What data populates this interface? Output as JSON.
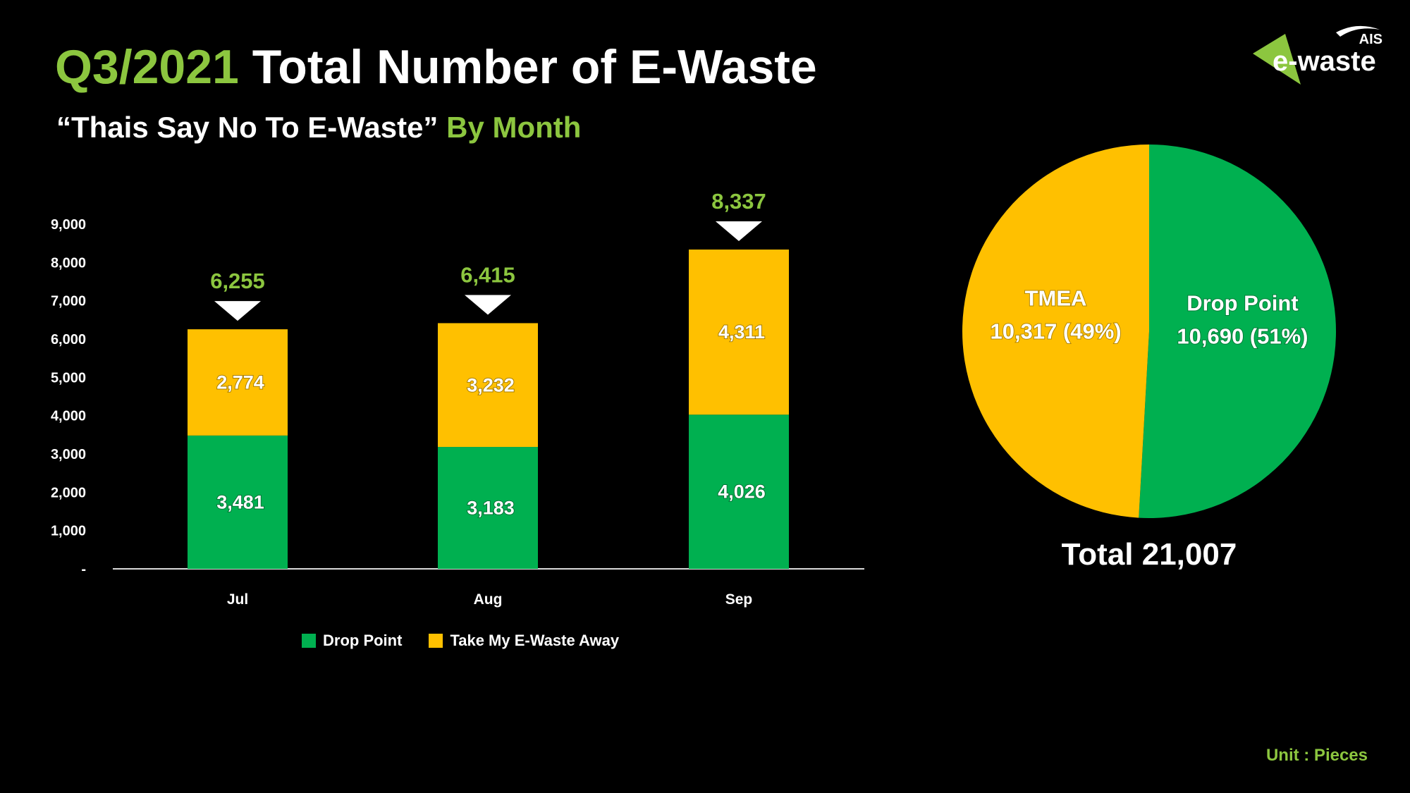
{
  "header": {
    "title_highlight": "Q3/2021",
    "title_rest": "Total Number of E-Waste",
    "subtitle_main": "“Thais Say No To E-Waste”",
    "subtitle_highlight": "By Month"
  },
  "logo": {
    "brand": "AIS",
    "product": "e-waste"
  },
  "colors": {
    "green": "#00b050",
    "yellow": "#ffc000",
    "accent": "#8cc63f",
    "background": "#000000"
  },
  "chart_data": [
    {
      "type": "bar",
      "stacked": true,
      "categories": [
        "Jul",
        "Aug",
        "Sep"
      ],
      "series": [
        {
          "name": "Drop Point",
          "values": [
            3481,
            3183,
            4026
          ],
          "labels": [
            "3,481",
            "3,183",
            "4,026"
          ],
          "color": "#00b050"
        },
        {
          "name": "Take My E-Waste Away",
          "values": [
            2774,
            3232,
            4311
          ],
          "labels": [
            "2,774",
            "3,232",
            "4,311"
          ],
          "color": "#ffc000"
        }
      ],
      "totals": [
        6255,
        6415,
        8337
      ],
      "total_labels": [
        "6,255",
        "6,415",
        "8,337"
      ],
      "ylim": [
        0,
        9000
      ],
      "yticks": [
        0,
        1000,
        2000,
        3000,
        4000,
        5000,
        6000,
        7000,
        8000,
        9000
      ],
      "ytick_labels": [
        "-",
        "1,000",
        "2,000",
        "3,000",
        "4,000",
        "5,000",
        "6,000",
        "7,000",
        "8,000",
        "9,000"
      ],
      "grid": false,
      "legend": "bottom"
    },
    {
      "type": "pie",
      "slices": [
        {
          "name": "Drop Point",
          "value": 10690,
          "label": "10,690 (51%)",
          "color": "#00b050"
        },
        {
          "name": "TMEA",
          "value": 10317,
          "label": "10,317 (49%)",
          "color": "#ffc000"
        }
      ],
      "total_label": "Total 21,007"
    }
  ],
  "footer": {
    "unit": "Unit : Pieces"
  }
}
